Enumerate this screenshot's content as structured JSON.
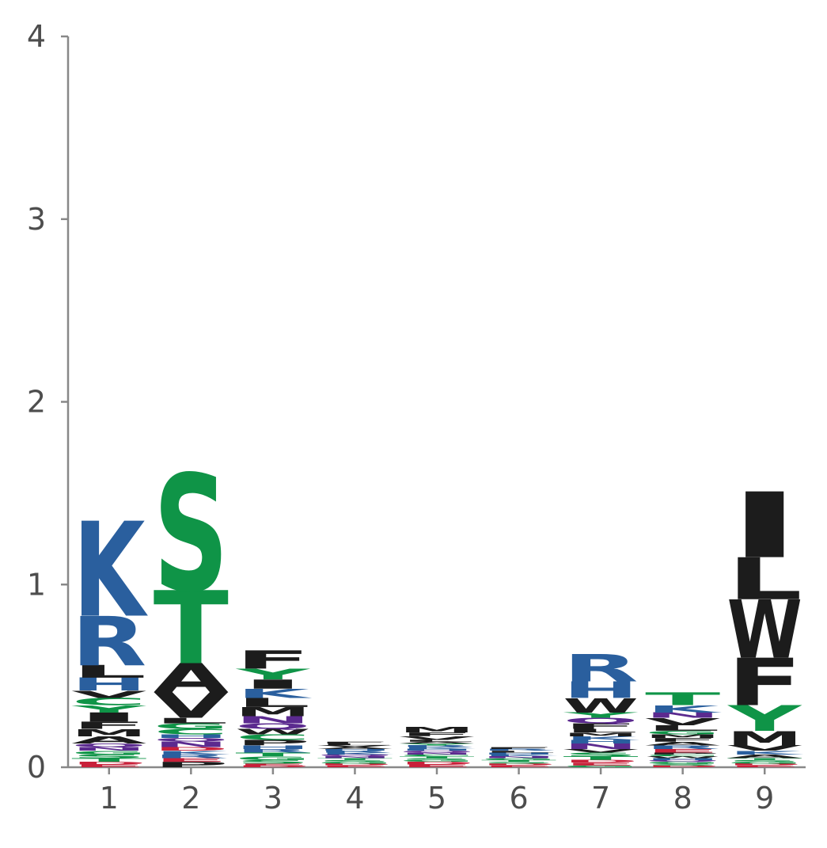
{
  "chart_data": {
    "type": "sequence-logo",
    "title": "",
    "xlabel": "",
    "ylabel": "",
    "ylim": [
      0,
      4
    ],
    "yticks": [
      0,
      1,
      2,
      3,
      4
    ],
    "positions": [
      1,
      2,
      3,
      4,
      5,
      6,
      7,
      8,
      9
    ],
    "grid": false,
    "colors": {
      "basic": "#2a5f9e",
      "polar": "#0f9447",
      "hydrophobic": "#1c1c1c",
      "acidic": "#c8203a",
      "amide": "#5b2a8f",
      "axis": "#888888"
    },
    "residue_classes": {
      "K": "basic",
      "R": "basic",
      "H": "basic",
      "S": "polar",
      "T": "polar",
      "G": "polar",
      "Y": "polar",
      "C": "polar",
      "A": "hydrophobic",
      "V": "hydrophobic",
      "L": "hydrophobic",
      "I": "hydrophobic",
      "P": "hydrophobic",
      "W": "hydrophobic",
      "F": "hydrophobic",
      "M": "hydrophobic",
      "D": "acidic",
      "E": "acidic",
      "N": "amide",
      "Q": "amide"
    },
    "columns": [
      {
        "position": 1,
        "stack": [
          {
            "letter": "E",
            "height": 0.015
          },
          {
            "letter": "D",
            "height": 0.015
          },
          {
            "letter": "T",
            "height": 0.02
          },
          {
            "letter": "S",
            "height": 0.02
          },
          {
            "letter": "G",
            "height": 0.02
          },
          {
            "letter": "N",
            "height": 0.02
          },
          {
            "letter": "Q",
            "height": 0.02
          },
          {
            "letter": "A",
            "height": 0.04
          },
          {
            "letter": "M",
            "height": 0.04
          },
          {
            "letter": "F",
            "height": 0.04
          },
          {
            "letter": "I",
            "height": 0.05
          },
          {
            "letter": "Y",
            "height": 0.04
          },
          {
            "letter": "C",
            "height": 0.04
          },
          {
            "letter": "V",
            "height": 0.04
          },
          {
            "letter": "H",
            "height": 0.07
          },
          {
            "letter": "L",
            "height": 0.07
          },
          {
            "letter": "R",
            "height": 0.27
          },
          {
            "letter": "K",
            "height": 0.52
          }
        ]
      },
      {
        "position": 2,
        "stack": [
          {
            "letter": "P",
            "height": 0.03
          },
          {
            "letter": "E",
            "height": 0.02
          },
          {
            "letter": "R",
            "height": 0.02
          },
          {
            "letter": "K",
            "height": 0.02
          },
          {
            "letter": "D",
            "height": 0.02
          },
          {
            "letter": "N",
            "height": 0.03
          },
          {
            "letter": "Q",
            "height": 0.02
          },
          {
            "letter": "H",
            "height": 0.02
          },
          {
            "letter": "C",
            "height": 0.03
          },
          {
            "letter": "G",
            "height": 0.03
          },
          {
            "letter": "L",
            "height": 0.03
          },
          {
            "letter": "V",
            "height": 0.14
          },
          {
            "letter": "A",
            "height": 0.16
          },
          {
            "letter": "T",
            "height": 0.4
          },
          {
            "letter": "S",
            "height": 0.64
          }
        ]
      },
      {
        "position": 3,
        "stack": [
          {
            "letter": "D",
            "height": 0.01
          },
          {
            "letter": "E",
            "height": 0.01
          },
          {
            "letter": "S",
            "height": 0.02
          },
          {
            "letter": "G",
            "height": 0.02
          },
          {
            "letter": "T",
            "height": 0.02
          },
          {
            "letter": "R",
            "height": 0.02
          },
          {
            "letter": "H",
            "height": 0.02
          },
          {
            "letter": "P",
            "height": 0.03
          },
          {
            "letter": "C",
            "height": 0.03
          },
          {
            "letter": "W",
            "height": 0.03
          },
          {
            "letter": "Q",
            "height": 0.03
          },
          {
            "letter": "N",
            "height": 0.04
          },
          {
            "letter": "M",
            "height": 0.05
          },
          {
            "letter": "L",
            "height": 0.05
          },
          {
            "letter": "K",
            "height": 0.05
          },
          {
            "letter": "I",
            "height": 0.05
          },
          {
            "letter": "Y",
            "height": 0.06
          },
          {
            "letter": "F",
            "height": 0.1
          }
        ]
      },
      {
        "position": 4,
        "stack": [
          {
            "letter": "E",
            "height": 0.01
          },
          {
            "letter": "D",
            "height": 0.01
          },
          {
            "letter": "G",
            "height": 0.01
          },
          {
            "letter": "S",
            "height": 0.01
          },
          {
            "letter": "T",
            "height": 0.01
          },
          {
            "letter": "N",
            "height": 0.01
          },
          {
            "letter": "Q",
            "height": 0.01
          },
          {
            "letter": "K",
            "height": 0.01
          },
          {
            "letter": "R",
            "height": 0.01
          },
          {
            "letter": "H",
            "height": 0.01
          },
          {
            "letter": "A",
            "height": 0.01
          },
          {
            "letter": "V",
            "height": 0.01
          },
          {
            "letter": "L",
            "height": 0.01
          },
          {
            "letter": "F",
            "height": 0.01
          }
        ]
      },
      {
        "position": 5,
        "stack": [
          {
            "letter": "E",
            "height": 0.015
          },
          {
            "letter": "D",
            "height": 0.015
          },
          {
            "letter": "G",
            "height": 0.01
          },
          {
            "letter": "S",
            "height": 0.01
          },
          {
            "letter": "T",
            "height": 0.01
          },
          {
            "letter": "C",
            "height": 0.01
          },
          {
            "letter": "N",
            "height": 0.01
          },
          {
            "letter": "Q",
            "height": 0.01
          },
          {
            "letter": "H",
            "height": 0.01
          },
          {
            "letter": "K",
            "height": 0.01
          },
          {
            "letter": "R",
            "height": 0.01
          },
          {
            "letter": "Y",
            "height": 0.01
          },
          {
            "letter": "A",
            "height": 0.01
          },
          {
            "letter": "L",
            "height": 0.01
          },
          {
            "letter": "V",
            "height": 0.02
          },
          {
            "letter": "F",
            "height": 0.02
          },
          {
            "letter": "M",
            "height": 0.03
          }
        ]
      },
      {
        "position": 6,
        "stack": [
          {
            "letter": "E",
            "height": 0.01
          },
          {
            "letter": "D",
            "height": 0.01
          },
          {
            "letter": "S",
            "height": 0.01
          },
          {
            "letter": "T",
            "height": 0.01
          },
          {
            "letter": "G",
            "height": 0.01
          },
          {
            "letter": "N",
            "height": 0.01
          },
          {
            "letter": "K",
            "height": 0.01
          },
          {
            "letter": "H",
            "height": 0.01
          },
          {
            "letter": "L",
            "height": 0.01
          },
          {
            "letter": "R",
            "height": 0.01
          },
          {
            "letter": "F",
            "height": 0.01
          }
        ]
      },
      {
        "position": 7,
        "stack": [
          {
            "letter": "G",
            "height": 0.01
          },
          {
            "letter": "E",
            "height": 0.015
          },
          {
            "letter": "D",
            "height": 0.015
          },
          {
            "letter": "T",
            "height": 0.02
          },
          {
            "letter": "S",
            "height": 0.02
          },
          {
            "letter": "V",
            "height": 0.02
          },
          {
            "letter": "N",
            "height": 0.03
          },
          {
            "letter": "H",
            "height": 0.02
          },
          {
            "letter": "K",
            "height": 0.02
          },
          {
            "letter": "M",
            "height": 0.02
          },
          {
            "letter": "L",
            "height": 0.02
          },
          {
            "letter": "F",
            "height": 0.03
          },
          {
            "letter": "Q",
            "height": 0.03
          },
          {
            "letter": "Y",
            "height": 0.03
          },
          {
            "letter": "W",
            "height": 0.08
          },
          {
            "letter": "H",
            "height": 0.09
          },
          {
            "letter": "R",
            "height": 0.15
          }
        ]
      },
      {
        "position": 8,
        "stack": [
          {
            "letter": "D",
            "height": 0.01
          },
          {
            "letter": "S",
            "height": 0.01
          },
          {
            "letter": "G",
            "height": 0.01
          },
          {
            "letter": "Q",
            "height": 0.01
          },
          {
            "letter": "H",
            "height": 0.01
          },
          {
            "letter": "W",
            "height": 0.01
          },
          {
            "letter": "C",
            "height": 0.01
          },
          {
            "letter": "P",
            "height": 0.01
          },
          {
            "letter": "E",
            "height": 0.02
          },
          {
            "letter": "R",
            "height": 0.02
          },
          {
            "letter": "A",
            "height": 0.02
          },
          {
            "letter": "F",
            "height": 0.02
          },
          {
            "letter": "M",
            "height": 0.02
          },
          {
            "letter": "G",
            "height": 0.02
          },
          {
            "letter": "L",
            "height": 0.03
          },
          {
            "letter": "V",
            "height": 0.04
          },
          {
            "letter": "N",
            "height": 0.03
          },
          {
            "letter": "K",
            "height": 0.04
          },
          {
            "letter": "T",
            "height": 0.07
          }
        ]
      },
      {
        "position": 9,
        "stack": [
          {
            "letter": "E",
            "height": 0.01
          },
          {
            "letter": "D",
            "height": 0.01
          },
          {
            "letter": "G",
            "height": 0.01
          },
          {
            "letter": "S",
            "height": 0.01
          },
          {
            "letter": "T",
            "height": 0.01
          },
          {
            "letter": "A",
            "height": 0.02
          },
          {
            "letter": "K",
            "height": 0.02
          },
          {
            "letter": "V",
            "height": 0.03
          },
          {
            "letter": "M",
            "height": 0.08
          },
          {
            "letter": "Y",
            "height": 0.14
          },
          {
            "letter": "F",
            "height": 0.26
          },
          {
            "letter": "W",
            "height": 0.32
          },
          {
            "letter": "L",
            "height": 0.23
          },
          {
            "letter": "I",
            "height": 0.36
          }
        ]
      }
    ]
  }
}
